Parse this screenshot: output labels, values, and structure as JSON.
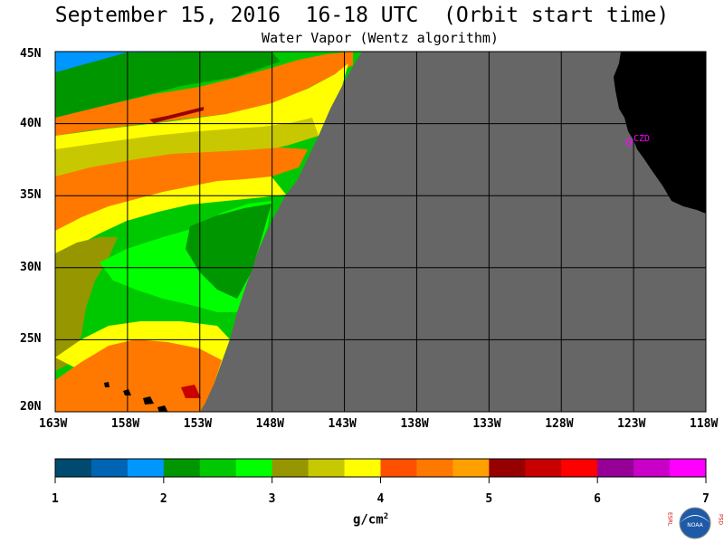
{
  "title": "September 15, 2016  16-18 UTC  (Orbit start time)",
  "subtitle": "Water Vapor (Wentz algorithm)",
  "station_label": "CZD",
  "units": "g/cm",
  "units_exp": "2",
  "logo": {
    "left_letters": "ESRL",
    "right_letters": "PSD",
    "center": "NOAA"
  },
  "colors": {
    "land": "#000000",
    "no_data": "#666666",
    "coast": "#666666",
    "station": "#ff00ff"
  },
  "chart_data": {
    "type": "heatmap",
    "title": "September 15, 2016  16-18 UTC  (Orbit start time)",
    "subtitle": "Water Vapor (Wentz algorithm)",
    "xlabel": "",
    "ylabel": "",
    "x_ticks": [
      "163W",
      "158W",
      "153W",
      "148W",
      "143W",
      "138W",
      "133W",
      "128W",
      "123W",
      "118W"
    ],
    "y_ticks": [
      "45N",
      "40N",
      "35N",
      "30N",
      "25N",
      "20N"
    ],
    "xlim": [
      -163,
      -118
    ],
    "ylim": [
      20,
      45
    ],
    "grid": true,
    "colorbar": {
      "ticks": [
        "1",
        "2",
        "3",
        "4",
        "5",
        "6",
        "7"
      ],
      "min": 1,
      "max": 7,
      "units": "g/cm²",
      "colors": [
        "#004a70",
        "#0064b4",
        "#0096ff",
        "#009600",
        "#00c800",
        "#00ff00",
        "#969600",
        "#c8c800",
        "#ffff00",
        "#ff5000",
        "#ff7800",
        "#ffa000",
        "#960000",
        "#c80000",
        "#ff0000",
        "#960096",
        "#c800c8",
        "#ff00ff"
      ]
    },
    "swath_edge": [
      {
        "lat": 45.3,
        "lon": -142.2
      },
      {
        "lat": 40.0,
        "lon": -144.5
      },
      {
        "lat": 35.0,
        "lon": -146.0
      },
      {
        "lat": 30.0,
        "lon": -148.5
      },
      {
        "lat": 25.0,
        "lon": -150.6
      },
      {
        "lat": 20.0,
        "lon": -152.8
      }
    ],
    "values_summary": [
      {
        "region": "northwest corner",
        "lat": 44,
        "lon": -161,
        "value": 1.5
      },
      {
        "region": "northern band",
        "lat": 42,
        "lon": -155,
        "value": 4.3
      },
      {
        "region": "central west",
        "lat": 37,
        "lon": -158,
        "value": 3.5
      },
      {
        "region": "central east",
        "lat": 32,
        "lon": -150,
        "value": 2.5
      },
      {
        "region": "southwest",
        "lat": 23,
        "lon": -158,
        "value": 4.6
      }
    ],
    "station": {
      "name": "CZD",
      "lat": 38.6,
      "lon": -123.2
    }
  }
}
